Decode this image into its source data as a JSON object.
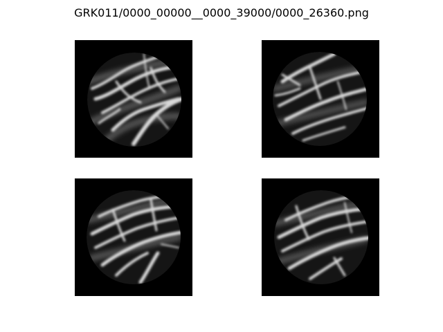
{
  "figure": {
    "title": "GRK011/0000_00000__0000_39000/0000_26360.png",
    "background_color": "#ffffff",
    "panel_background": "#000000"
  },
  "panels": [
    {
      "id": "top-left",
      "content": "grayscale circular field of bright branching vessel-like streaks"
    },
    {
      "id": "top-right",
      "content": "grayscale circular field of bright branching vessel-like streaks"
    },
    {
      "id": "bottom-left",
      "content": "grayscale circular field of bright branching vessel-like streaks"
    },
    {
      "id": "bottom-right",
      "content": "grayscale circular field of bright branching vessel-like streaks"
    }
  ]
}
